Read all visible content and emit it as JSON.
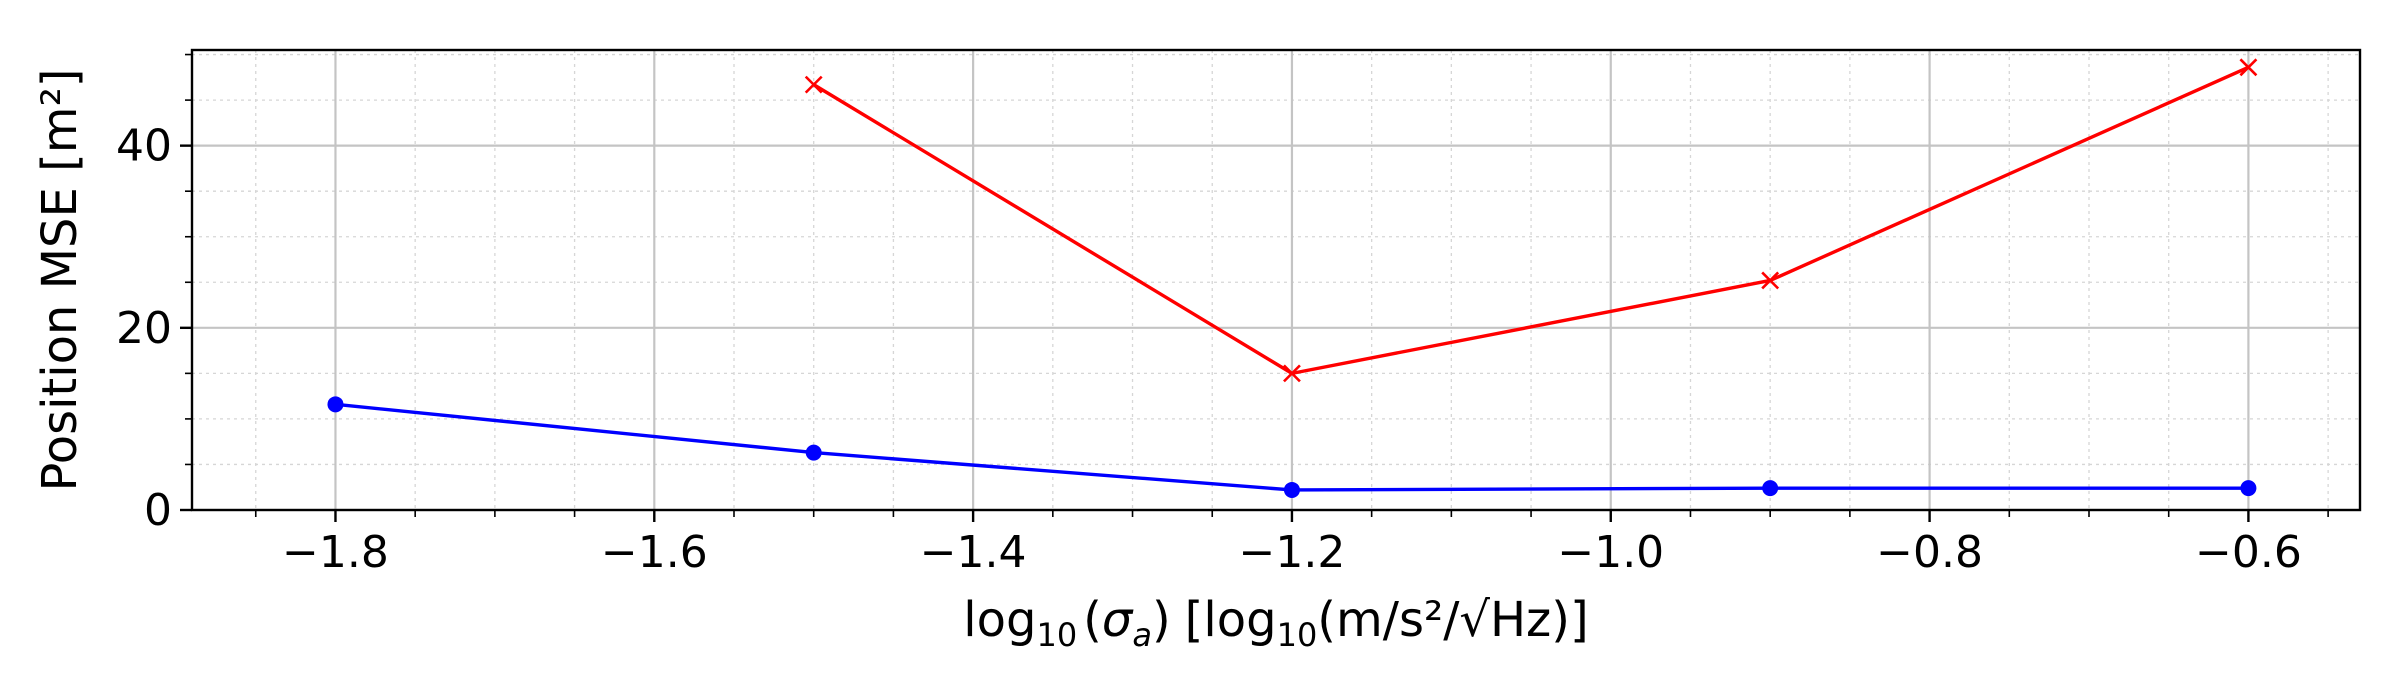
{
  "chart_data": {
    "type": "line",
    "title": "",
    "xlabel": {
      "prefix": "log",
      "prefix_sub": "10",
      "var_open": "(",
      "var": "σ",
      "var_sub": "a",
      "var_close": ")",
      "unit_open": "[log",
      "unit_sub": "10",
      "unit_rest": "(m/s²/√Hz)]"
    },
    "ylabel": "Position MSE [m²]",
    "xlim": [
      -1.89,
      -0.53
    ],
    "ylim": [
      0,
      50.5
    ],
    "x_ticks": [
      -1.8,
      -1.6,
      -1.4,
      -1.2,
      -1.0,
      -0.8,
      -0.6
    ],
    "x_tick_labels": [
      "−1.8",
      "−1.6",
      "−1.4",
      "−1.2",
      "−1.0",
      "−0.8",
      "−0.6"
    ],
    "y_ticks": [
      0,
      20,
      40
    ],
    "y_tick_labels": [
      "0",
      "20",
      "40"
    ],
    "x_minor_step": 0.05,
    "y_minor_step": 5,
    "grid": true,
    "series": [
      {
        "color": "#ff0000",
        "marker": "x",
        "x": [
          -1.5,
          -1.2,
          -0.9,
          -0.6
        ],
        "y": [
          46.7,
          15.0,
          25.2,
          48.6
        ]
      },
      {
        "color": "#0000ff",
        "marker": "circle",
        "x": [
          -1.8,
          -1.5,
          -1.2,
          -0.9,
          -0.6
        ],
        "y": [
          11.6,
          6.3,
          2.2,
          2.4,
          2.4
        ]
      }
    ]
  }
}
